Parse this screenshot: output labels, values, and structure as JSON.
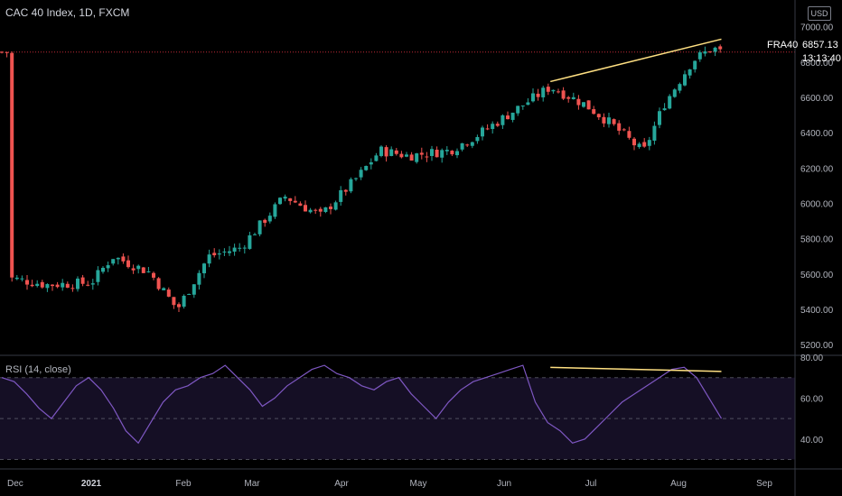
{
  "header": {
    "title": "CAC 40 Index, 1D, FXCM",
    "currency": "USD"
  },
  "last_price": {
    "symbol": "FRA40",
    "value": "6857.13",
    "countdown": "13:13:40",
    "color": "#f23645"
  },
  "rsi_panel": {
    "label": "RSI (14, close)"
  },
  "colors": {
    "up": "#26a69a",
    "down": "#ef5350",
    "rsi_line": "#7e57c2",
    "trendline": "#ffe082",
    "background": "#000000"
  },
  "chart_data": [
    {
      "type": "candlestick",
      "title": "CAC 40 Index, 1D, FXCM",
      "x_tick_labels": [
        "Dec",
        "2021",
        "Feb",
        "Mar",
        "Apr",
        "May",
        "Jun",
        "Jul",
        "Aug",
        "Sep"
      ],
      "y_tick_labels": [
        "5200.00",
        "5400.00",
        "5600.00",
        "5800.00",
        "6000.00",
        "6200.00",
        "6400.00",
        "6600.00",
        "6800.00",
        "7000.00"
      ],
      "ylim": [
        5150,
        7060
      ],
      "grid": false,
      "close_series": [
        {
          "date": "Dec",
          "close": 5580
        },
        {
          "date": "Dec 15",
          "close": 5540
        },
        {
          "date": "Dec 31",
          "close": 5550
        },
        {
          "date": "Jan 8",
          "close": 5700
        },
        {
          "date": "Jan 20",
          "close": 5610
        },
        {
          "date": "Jan 29",
          "close": 5400
        },
        {
          "date": "Feb 12",
          "close": 5700
        },
        {
          "date": "Feb 26",
          "close": 5750
        },
        {
          "date": "Mar 12",
          "close": 6040
        },
        {
          "date": "Mar 24",
          "close": 5930
        },
        {
          "date": "Apr 8",
          "close": 6160
        },
        {
          "date": "Apr 16",
          "close": 6300
        },
        {
          "date": "Apr 27",
          "close": 6270
        },
        {
          "date": "May 12",
          "close": 6300
        },
        {
          "date": "May 21",
          "close": 6380
        },
        {
          "date": "Jun 4",
          "close": 6520
        },
        {
          "date": "Jun 17",
          "close": 6660
        },
        {
          "date": "Jun 29",
          "close": 6560
        },
        {
          "date": "Jul 8",
          "close": 6450
        },
        {
          "date": "Jul 19",
          "close": 6290
        },
        {
          "date": "Jul 26",
          "close": 6560
        },
        {
          "date": "Aug 6",
          "close": 6810
        },
        {
          "date": "Aug 13",
          "close": 6880
        },
        {
          "date": "Aug 16",
          "close": 6857.13
        }
      ],
      "last_value": 6857.13,
      "annotations": [
        {
          "type": "trendline",
          "from": {
            "date": "Jun 17",
            "value": 6690
          },
          "to": {
            "date": "Aug 16",
            "value": 6930
          }
        }
      ]
    },
    {
      "type": "line",
      "title": "RSI (14, close)",
      "y_tick_labels": [
        "40.00",
        "60.00",
        "80.00"
      ],
      "ylim": [
        28,
        80
      ],
      "bands": [
        30,
        50,
        70
      ],
      "series": [
        {
          "values": [
            70,
            68,
            62,
            55,
            50,
            58,
            66,
            70,
            64,
            55,
            44,
            38,
            48,
            58,
            64,
            66,
            70,
            72,
            76,
            70,
            64,
            56,
            60,
            66,
            70,
            74,
            76,
            72,
            70,
            66,
            64,
            68,
            70,
            62,
            56,
            50,
            58,
            64,
            68,
            70,
            72,
            74,
            76,
            58,
            48,
            44,
            38,
            40,
            46,
            52,
            58,
            62,
            66,
            70,
            74,
            75,
            70,
            60,
            50
          ]
        }
      ],
      "annotations": [
        {
          "type": "trendline",
          "from": {
            "date": "Jun 17",
            "value": 75
          },
          "to": {
            "date": "Aug 16",
            "value": 73
          }
        }
      ]
    }
  ]
}
